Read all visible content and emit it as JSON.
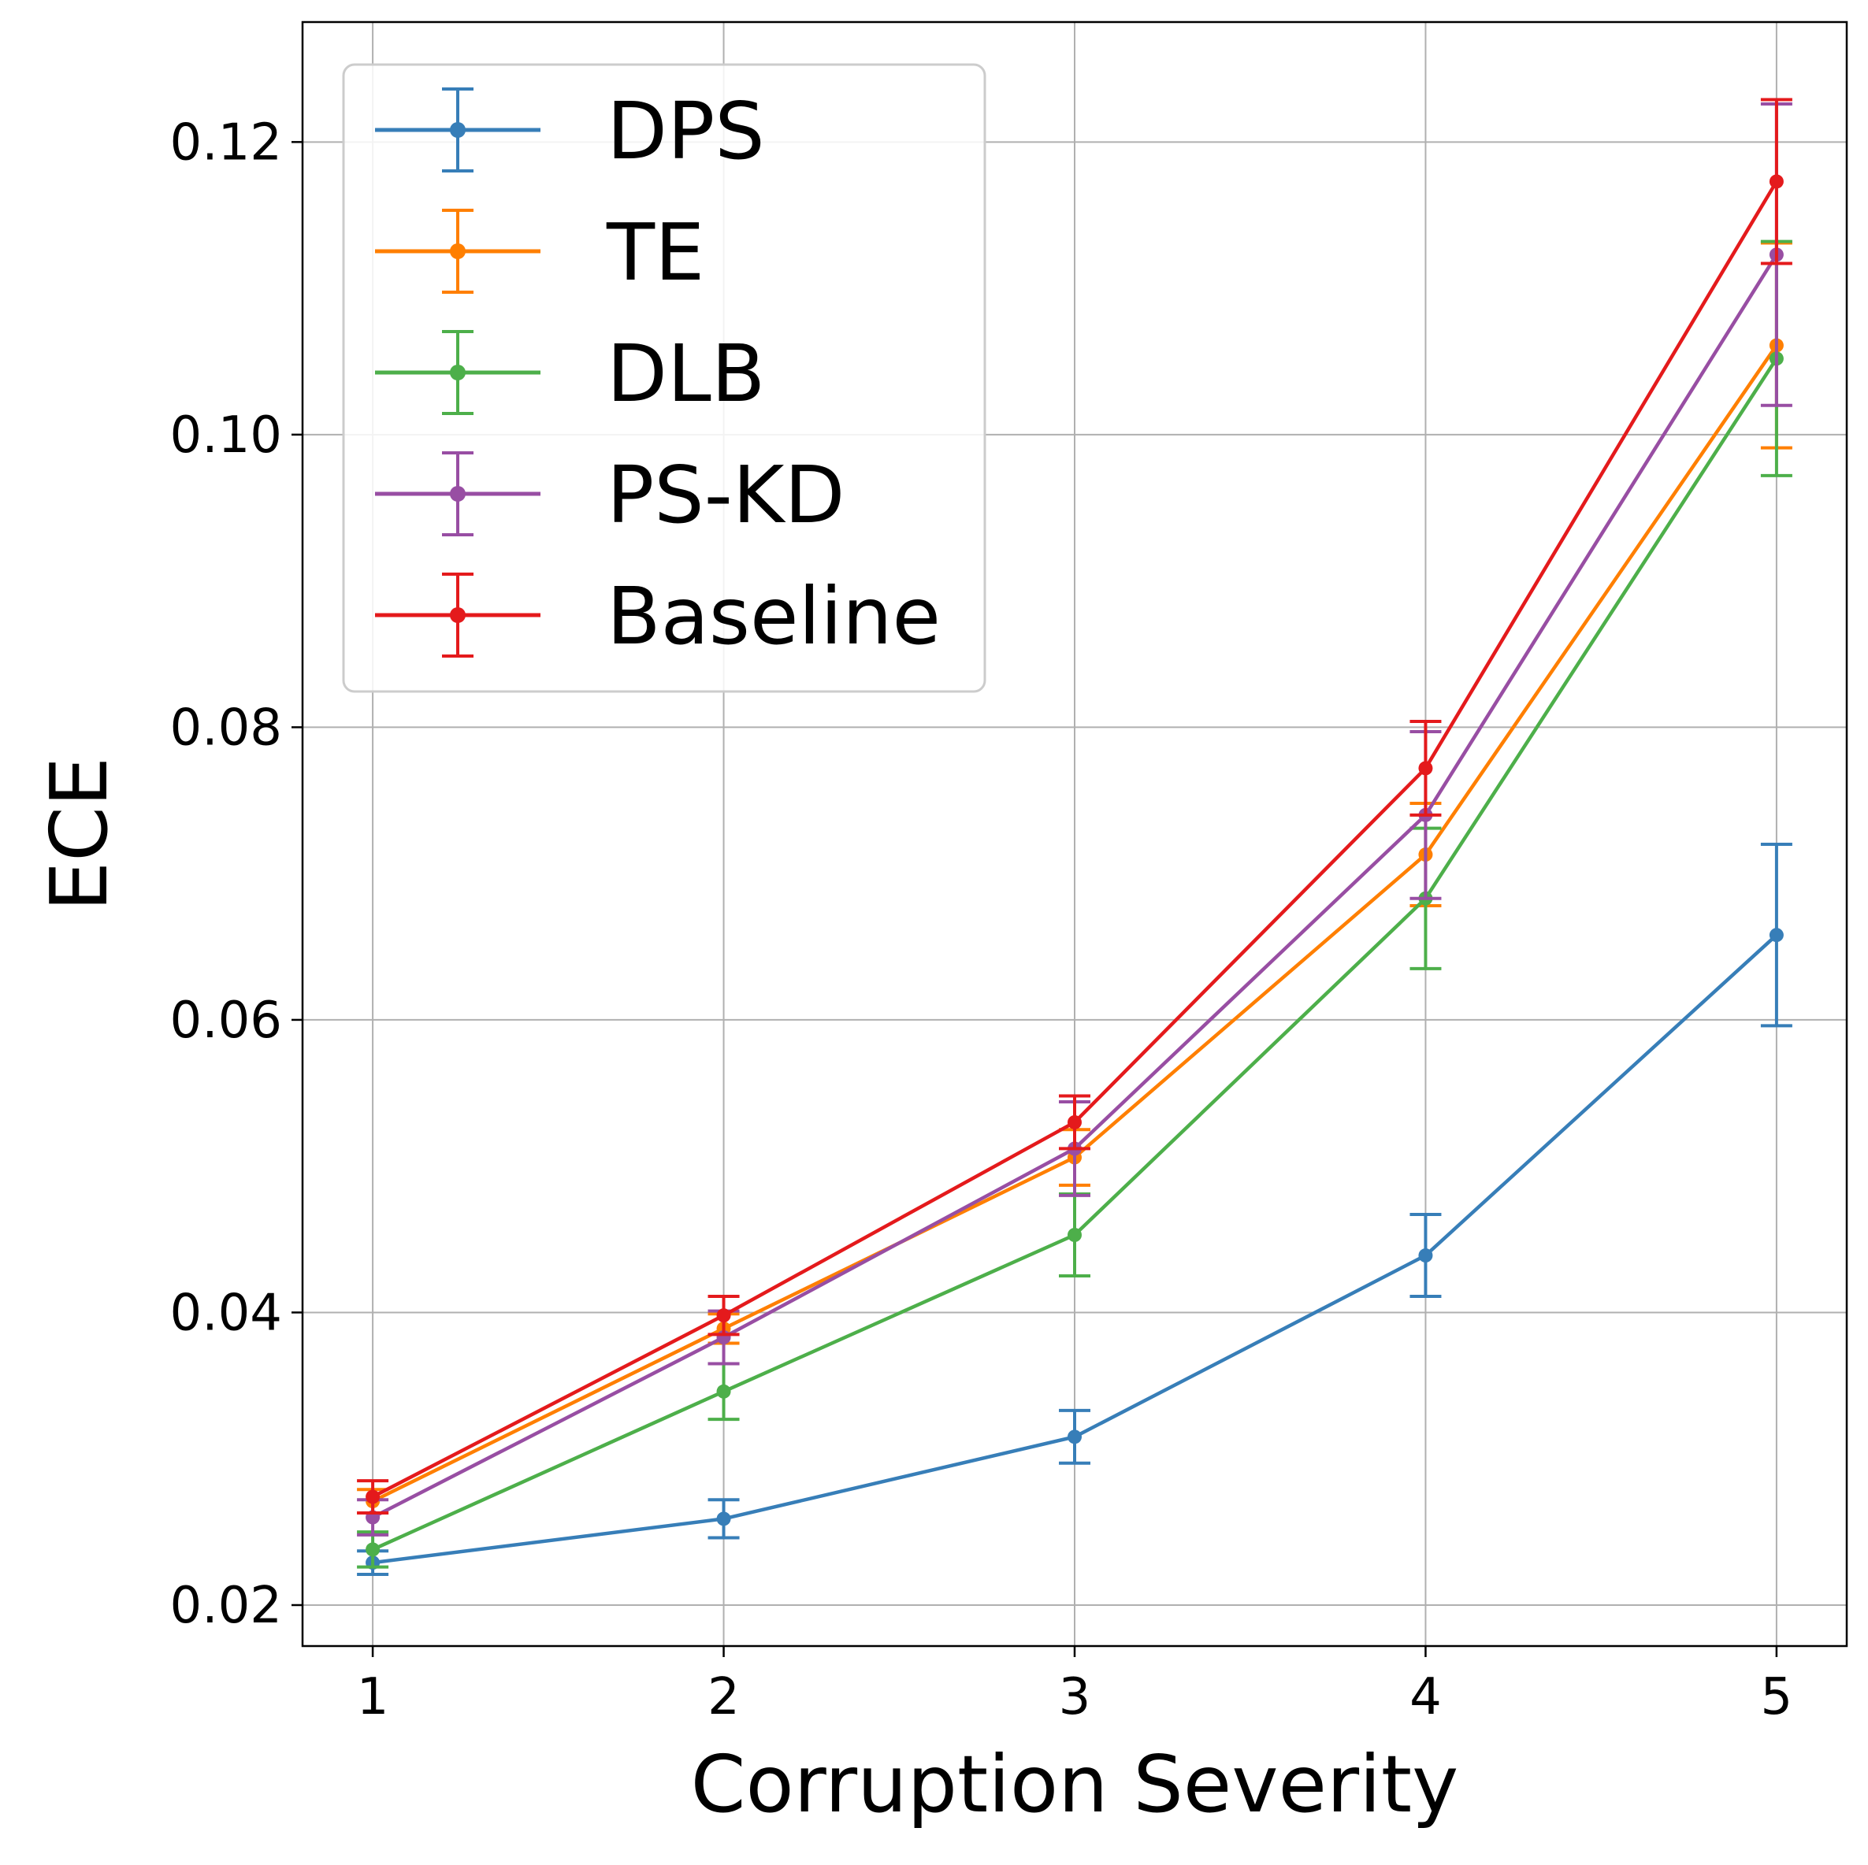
{
  "chart_data": {
    "type": "line",
    "title": "",
    "xlabel": "Corruption Severity",
    "ylabel": "ECE",
    "x": [
      1,
      2,
      3,
      4,
      5
    ],
    "xlim": [
      0.8,
      5.2
    ],
    "ylim": [
      0.0172,
      0.1282
    ],
    "xticks": [
      1,
      2,
      3,
      4,
      5
    ],
    "yticks": [
      0.02,
      0.04,
      0.06,
      0.08,
      0.1,
      0.12
    ],
    "ytick_labels": [
      "0.02",
      "0.04",
      "0.06",
      "0.08",
      "0.10",
      "0.12"
    ],
    "grid": true,
    "legend": "top-left",
    "error_bars": true,
    "series": [
      {
        "name": "DPS",
        "color": "#377eb8",
        "values": [
          0.0229,
          0.0259,
          0.0315,
          0.0439,
          0.0658
        ],
        "errors": [
          0.0008,
          0.0013,
          0.0018,
          0.0028,
          0.0062
        ]
      },
      {
        "name": "TE",
        "color": "#ff7f00",
        "values": [
          0.0271,
          0.0389,
          0.0506,
          0.0713,
          0.1061
        ],
        "errors": [
          0.0008,
          0.001,
          0.0019,
          0.0035,
          0.007
        ]
      },
      {
        "name": "DLB",
        "color": "#4daf4a",
        "values": [
          0.0238,
          0.0346,
          0.0453,
          0.0683,
          0.1052
        ],
        "errors": [
          0.0012,
          0.0019,
          0.0028,
          0.0048,
          0.008
        ]
      },
      {
        "name": "PS-KD",
        "color": "#984ea3",
        "values": [
          0.026,
          0.0383,
          0.0512,
          0.074,
          0.1123
        ],
        "errors": [
          0.0012,
          0.0018,
          0.0032,
          0.0057,
          0.0103
        ]
      },
      {
        "name": "Baseline",
        "color": "#e41a1c",
        "values": [
          0.0274,
          0.0398,
          0.053,
          0.0772,
          0.1173
        ],
        "errors": [
          0.0011,
          0.0013,
          0.0018,
          0.0032,
          0.0056
        ]
      }
    ]
  }
}
